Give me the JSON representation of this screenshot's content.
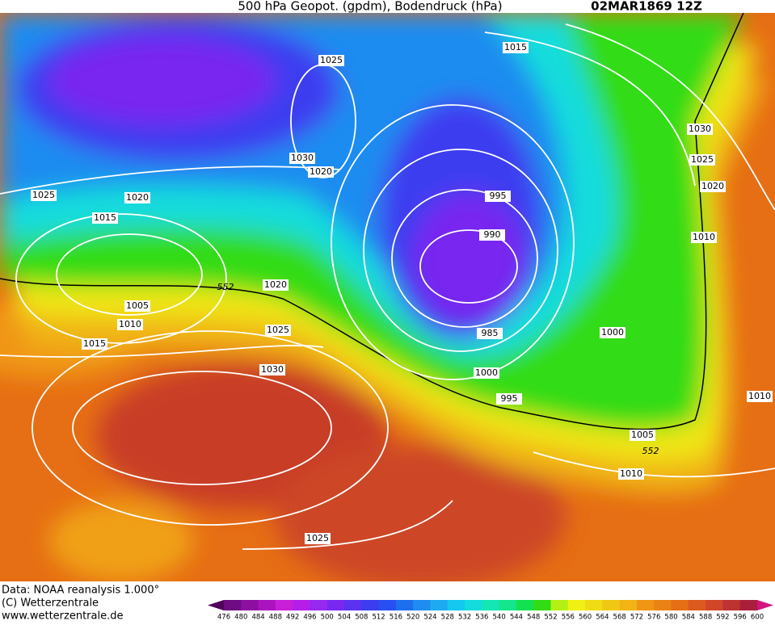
{
  "header": {
    "title": "500 hPa Geopot. (gpdm), Bodendruck (hPa)",
    "date": "02MAR1869 12Z"
  },
  "map": {
    "isobar_labels": [
      1025,
      1015,
      1030,
      1025,
      1020,
      1010,
      1030,
      1020,
      1025,
      1020,
      1015,
      995,
      990,
      552,
      1020,
      1005,
      1010,
      1015,
      1025,
      1000,
      985,
      1030,
      1000,
      995,
      1010,
      1005,
      552,
      1010,
      1025
    ]
  },
  "colorbar": {
    "ticks": [
      476,
      480,
      484,
      488,
      492,
      496,
      500,
      504,
      508,
      512,
      516,
      520,
      524,
      528,
      532,
      536,
      540,
      544,
      548,
      552,
      556,
      560,
      564,
      568,
      572,
      576,
      580,
      584,
      588,
      592,
      596,
      600
    ],
    "colors": [
      "#50005a",
      "#6e0a82",
      "#8c0fa0",
      "#aa14be",
      "#c81ed7",
      "#b41eeb",
      "#9628f0",
      "#7828f0",
      "#5a32f0",
      "#3c3cf0",
      "#2850f0",
      "#1e6ef0",
      "#1e8cf0",
      "#1eaaf0",
      "#14c8f0",
      "#14dcdc",
      "#14e6b4",
      "#14e68c",
      "#14e150",
      "#32dc14",
      "#b4f014",
      "#f0f014",
      "#f0dc14",
      "#f0c814",
      "#f0b414",
      "#f09614",
      "#eb8214",
      "#e66e14",
      "#dc5a1e",
      "#d24628",
      "#be3232",
      "#aa1e3c",
      "#d2147d"
    ]
  },
  "footer": {
    "source": "Data: NOAA reanalysis 1.000°",
    "copyright": "(C) Wetterzentrale",
    "url": "www.wetterzentrale.de"
  }
}
